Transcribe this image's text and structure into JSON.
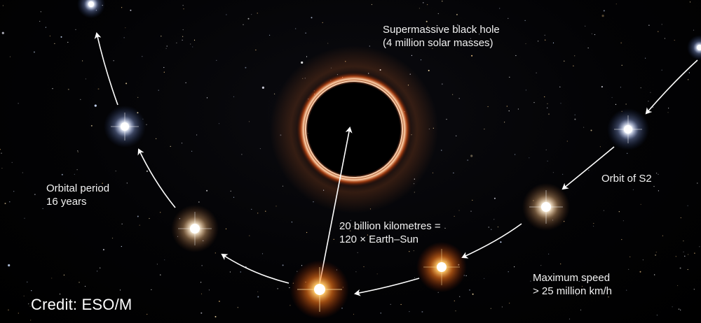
{
  "image": {
    "description_tag": "S2 star orbit around supermassive black hole illustration"
  },
  "labels": {
    "black_hole_line1": "Supermassive black hole",
    "black_hole_line2": "(4 million solar masses)",
    "period_line1": "Orbital period",
    "period_line2": "16 years",
    "distance_line1": "20 billion kilometres =",
    "distance_line2": "120 × Earth–Sun",
    "orbit": "Orbit of S2",
    "speed_line1": "Maximum speed",
    "speed_line2": "> 25 million km/h"
  },
  "credit": "Credit: ESO/M",
  "colors": {
    "ring": "#ffb07a",
    "star_white": "#ffffff",
    "star_orange": "#ff8a2a",
    "arrow": "#ffffff",
    "text": "#f2f2f2"
  }
}
